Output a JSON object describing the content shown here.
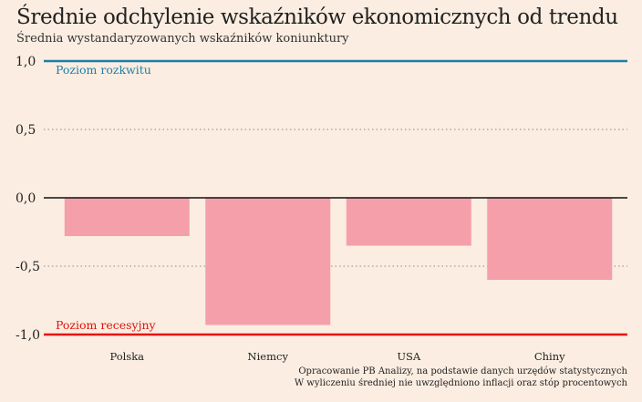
{
  "header": {
    "title": "Średnie odchylenie wskaźników ekonomicznych od trendu",
    "subtitle": "Średnia wystandaryzowanych wskaźników koniunktury"
  },
  "chart_data": {
    "type": "bar",
    "categories": [
      "Polska",
      "Niemcy",
      "USA",
      "Chiny"
    ],
    "values": [
      -0.28,
      -0.93,
      -0.35,
      -0.6
    ],
    "ylim": [
      -1.0,
      1.0
    ],
    "yticks": [
      1.0,
      0.5,
      0.0,
      -0.5,
      -1.0
    ],
    "ytick_labels": [
      "1,0",
      "0,5",
      "0,0",
      "-0,5",
      "-1,0"
    ],
    "grid": "dotted",
    "reference_lines": [
      {
        "value": 1.0,
        "label": "Poziom rozkwitu",
        "color": "#1a7fa8"
      },
      {
        "value": -1.0,
        "label": "Poziom recesyjny",
        "color": "#e3120b"
      }
    ],
    "colors": {
      "bar": "#f59fab",
      "zero_line": "#111111"
    }
  },
  "footer": {
    "source_line1": "Opracowanie PB Analizy, na podstawie danych urzędów statystycznych",
    "source_line2": "W wyliczeniu średniej nie uwzględniono inflacji oraz stóp procentowych"
  }
}
